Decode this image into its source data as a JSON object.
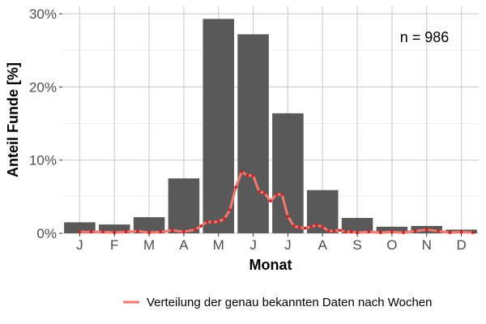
{
  "chart_data": {
    "type": "bar",
    "categories": [
      "J",
      "F",
      "M",
      "A",
      "M",
      "J",
      "J",
      "A",
      "S",
      "O",
      "N",
      "D"
    ],
    "values": [
      1.5,
      1.2,
      2.2,
      7.5,
      29.3,
      27.2,
      16.4,
      5.9,
      2.1,
      0.9,
      1.0,
      0.5
    ],
    "ylim": [
      0,
      31
    ],
    "yticks": [
      0,
      10,
      20,
      30
    ],
    "ytick_labels": [
      "0%",
      "10%",
      "20%",
      "30%"
    ],
    "xlabel": "Monat",
    "ylabel": "Anteil Funde [%]",
    "annotation": "n = 986",
    "grid": true,
    "bar_color": "#595959",
    "line_series": {
      "name": "Verteilung der genau bekannten Daten nach Wochen",
      "color": "#f8766d",
      "point_color": "#d7191c",
      "x": [
        0.5,
        0.83,
        1.17,
        1.5,
        1.83,
        2.17,
        2.5,
        2.83,
        3.17,
        3.5,
        3.83,
        4.0,
        4.17,
        4.33,
        4.5,
        4.67,
        4.83,
        5.0,
        5.17,
        5.33,
        5.5,
        5.67,
        5.83,
        6.0,
        6.17,
        6.33,
        6.5,
        6.67,
        6.83,
        7.0,
        7.17,
        7.33,
        7.5,
        7.67,
        7.83,
        8.0,
        8.17,
        8.33,
        8.5,
        8.83,
        9.17,
        9.5,
        9.83,
        10.17,
        10.5,
        10.83,
        11.17,
        11.5,
        11.83
      ],
      "y": [
        0.2,
        0.2,
        0.2,
        0.1,
        0.2,
        0.3,
        0.1,
        0.2,
        0.4,
        0.2,
        0.5,
        1.0,
        1.6,
        1.5,
        1.6,
        2.0,
        3.2,
        6.3,
        8.4,
        7.9,
        7.9,
        5.7,
        5.5,
        4.4,
        5.3,
        5.3,
        2.3,
        1.0,
        0.8,
        0.7,
        0.9,
        1.1,
        0.9,
        0.3,
        0.3,
        0.4,
        0.2,
        0.2,
        0.1,
        0.2,
        0.1,
        0.2,
        0.1,
        0.3,
        0.5,
        0.3,
        0.1,
        0.2,
        0.1
      ]
    },
    "legend_position": "bottom"
  }
}
